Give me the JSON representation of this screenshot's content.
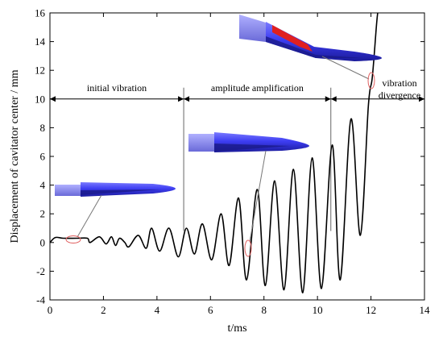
{
  "chart_data": {
    "type": "line",
    "title": "",
    "xlabel": "t/ms",
    "ylabel": "Displacement of cavitator center / mm",
    "xlim": [
      0,
      14
    ],
    "ylim": [
      -4,
      16
    ],
    "x_ticks": [
      0,
      2,
      4,
      6,
      8,
      10,
      12,
      14
    ],
    "y_ticks": [
      -4,
      -2,
      0,
      2,
      4,
      6,
      8,
      10,
      12,
      14,
      16
    ],
    "grid": false,
    "series": [
      {
        "color": "#000000",
        "points": [
          [
            0.0,
            0.0
          ],
          [
            0.2,
            0.35
          ],
          [
            0.5,
            0.3
          ],
          [
            1.0,
            0.3
          ],
          [
            1.4,
            0.3
          ],
          [
            1.5,
            0.0
          ],
          [
            1.85,
            0.4
          ],
          [
            2.1,
            -0.1
          ],
          [
            2.3,
            0.4
          ],
          [
            2.45,
            -0.2
          ],
          [
            2.6,
            0.3
          ],
          [
            2.8,
            0.0
          ],
          [
            2.95,
            -0.3
          ],
          [
            3.3,
            0.5
          ],
          [
            3.6,
            -0.4
          ],
          [
            3.8,
            1.0
          ],
          [
            4.1,
            -0.6
          ],
          [
            4.45,
            1.0
          ],
          [
            4.8,
            -1.0
          ],
          [
            5.1,
            1.0
          ],
          [
            5.4,
            -0.8
          ],
          [
            5.7,
            1.3
          ],
          [
            6.05,
            -1.2
          ],
          [
            6.4,
            2.0
          ],
          [
            6.7,
            -1.6
          ],
          [
            7.05,
            3.1
          ],
          [
            7.35,
            -2.6
          ],
          [
            7.75,
            3.7
          ],
          [
            8.05,
            -3.0
          ],
          [
            8.4,
            4.3
          ],
          [
            8.75,
            -3.3
          ],
          [
            9.1,
            5.1
          ],
          [
            9.45,
            -3.5
          ],
          [
            9.8,
            5.9
          ],
          [
            10.15,
            -3.2
          ],
          [
            10.55,
            6.8
          ],
          [
            10.85,
            -2.6
          ],
          [
            11.25,
            8.6
          ],
          [
            11.6,
            0.5
          ],
          [
            11.9,
            9.5
          ],
          [
            12.05,
            11.5
          ],
          [
            12.2,
            15.0
          ],
          [
            12.25,
            16.0
          ]
        ]
      }
    ],
    "annotations": {
      "phases": [
        {
          "label": "initial vibration",
          "x_start": 0,
          "x_end": 5.0
        },
        {
          "label": "amplitude amplification",
          "x_start": 5.0,
          "x_end": 10.5
        },
        {
          "label_line1": "vibration",
          "label_line2": "divergence",
          "x_start": 10.5,
          "x_end": 14
        }
      ],
      "arrow_y": 10
    },
    "colors": {
      "line": "#000000",
      "body": "#4a4af0",
      "body_dark": "#1f1f9e",
      "highlight": "#e02020",
      "marker": "#e06060"
    }
  }
}
